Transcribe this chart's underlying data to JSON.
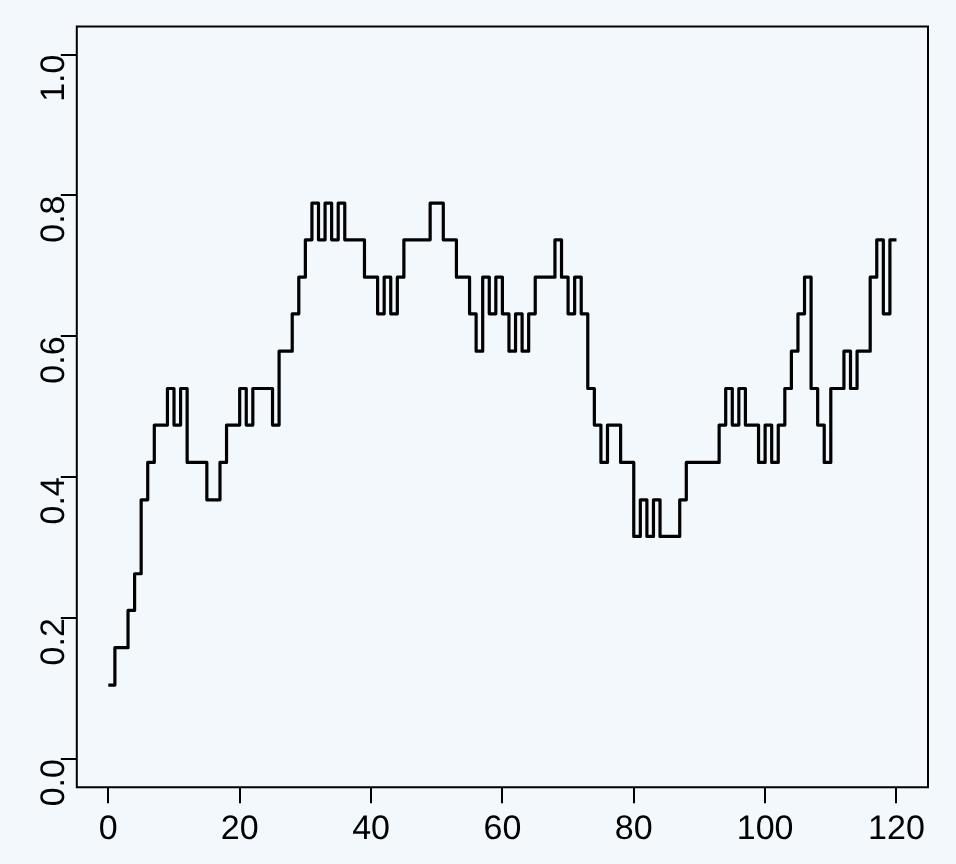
{
  "chart_data": {
    "type": "step",
    "x": [
      0,
      1,
      2,
      3,
      4,
      5,
      6,
      7,
      8,
      9,
      10,
      11,
      12,
      13,
      14,
      15,
      16,
      17,
      18,
      19,
      20,
      21,
      22,
      23,
      24,
      25,
      26,
      27,
      28,
      29,
      30,
      31,
      32,
      33,
      34,
      35,
      36,
      37,
      38,
      39,
      40,
      41,
      42,
      43,
      44,
      45,
      46,
      47,
      48,
      49,
      50,
      51,
      52,
      53,
      54,
      55,
      56,
      57,
      58,
      59,
      60,
      61,
      62,
      63,
      64,
      65,
      66,
      67,
      68,
      69,
      70,
      71,
      72,
      73,
      74,
      75,
      76,
      77,
      78,
      79,
      80,
      81,
      82,
      83,
      84,
      85,
      86,
      87,
      88,
      89,
      90,
      91,
      92,
      93,
      94,
      95,
      96,
      97,
      98,
      99,
      100,
      101,
      102,
      103,
      104,
      105,
      106,
      107,
      108,
      109,
      110,
      111,
      112,
      113,
      114,
      115,
      116,
      117,
      118,
      119,
      120
    ],
    "series": [
      {
        "color": "#000000",
        "values": [
          0.105,
          0.105,
          0.158,
          0.158,
          0.211,
          0.263,
          0.368,
          0.421,
          0.474,
          0.474,
          0.526,
          0.474,
          0.526,
          0.421,
          0.421,
          0.421,
          0.368,
          0.368,
          0.421,
          0.474,
          0.474,
          0.526,
          0.474,
          0.526,
          0.526,
          0.526,
          0.474,
          0.579,
          0.579,
          0.632,
          0.684,
          0.737,
          0.789,
          0.737,
          0.789,
          0.737,
          0.789,
          0.737,
          0.737,
          0.737,
          0.684,
          0.684,
          0.632,
          0.684,
          0.632,
          0.684,
          0.737,
          0.737,
          0.737,
          0.737,
          0.789,
          0.789,
          0.737,
          0.737,
          0.684,
          0.684,
          0.632,
          0.579,
          0.684,
          0.632,
          0.684,
          0.632,
          0.579,
          0.632,
          0.579,
          0.632,
          0.684,
          0.684,
          0.684,
          0.737,
          0.684,
          0.632,
          0.684,
          0.632,
          0.526,
          0.474,
          0.421,
          0.474,
          0.474,
          0.421,
          0.421,
          0.316,
          0.368,
          0.316,
          0.368,
          0.316,
          0.316,
          0.316,
          0.368,
          0.421,
          0.421,
          0.421,
          0.421,
          0.421,
          0.474,
          0.526,
          0.474,
          0.526,
          0.474,
          0.474,
          0.421,
          0.474,
          0.421,
          0.474,
          0.526,
          0.579,
          0.632,
          0.684,
          0.526,
          0.474,
          0.421,
          0.526,
          0.526,
          0.579,
          0.526,
          0.579,
          0.579,
          0.684,
          0.737,
          0.632,
          0.737
        ]
      }
    ],
    "xlim": [
      -4.8,
      124.8
    ],
    "xticks": [
      0,
      20,
      40,
      60,
      80,
      100,
      120
    ],
    "ylim": [
      -0.04,
      1.04
    ],
    "yticks": [
      {
        "value": 0,
        "label": "0.0"
      },
      {
        "value": 0.2,
        "label": "0.2"
      },
      {
        "value": 0.4,
        "label": "0.4"
      },
      {
        "value": 0.6,
        "label": "0.6"
      },
      {
        "value": 0.8,
        "label": "0.8"
      },
      {
        "value": 1,
        "label": "1.0"
      }
    ],
    "grid": false,
    "legend": false,
    "line_style": "solid",
    "marker": "none"
  }
}
